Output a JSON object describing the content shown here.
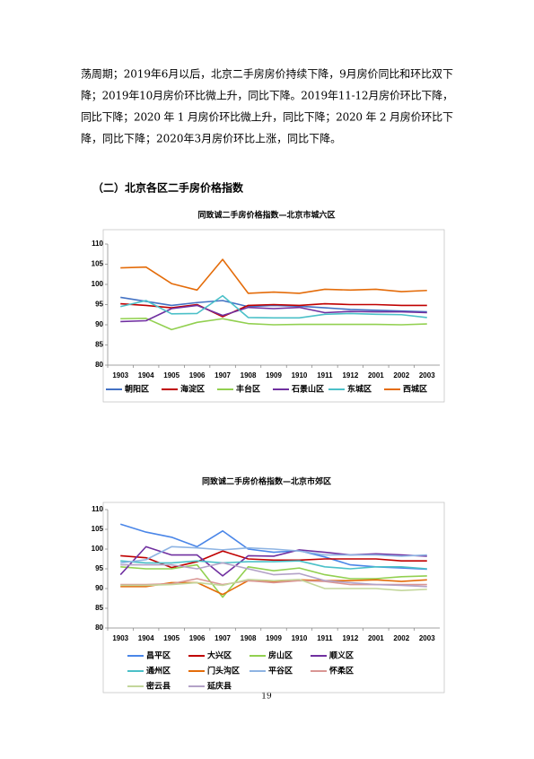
{
  "paragraph": [
    "荡周期；2019年6月以后，北京二手房房价持续下降，9月房价同比和环比双下",
    "降；2019年10月房价环比微上升，同比下降。2019年11-12月房价环比下降，",
    "同比下降；2020 年 1 月房价环比微上升，同比下降；2020 年 2 月房价环比下",
    "降，同比下降；2020年3月房价环比上涨，同比下降。"
  ],
  "section_heading": "（二）北京各区二手房价格指数",
  "chart_data": [
    {
      "type": "line",
      "title": "同致诚二手房价格指数—北京市城六区",
      "categories": [
        "1903",
        "1904",
        "1905",
        "1906",
        "1907",
        "1908",
        "1909",
        "1910",
        "1911",
        "1912",
        "2001",
        "2002",
        "2003"
      ],
      "ylim": [
        80,
        110
      ],
      "yticks": [
        80,
        85,
        90,
        95,
        100,
        105,
        110
      ],
      "legend": "bottom",
      "series": [
        {
          "name": "朝阳区",
          "color": "#4472c4",
          "values": [
            96.8,
            95.8,
            94.8,
            95.5,
            96.0,
            94.5,
            94.8,
            94.6,
            94.2,
            93.8,
            93.6,
            93.4,
            93.2
          ]
        },
        {
          "name": "海淀区",
          "color": "#c00000",
          "values": [
            95.2,
            94.8,
            94.2,
            95.0,
            92.0,
            94.8,
            95.0,
            94.8,
            95.2,
            95.0,
            95.0,
            94.8,
            94.8
          ]
        },
        {
          "name": "丰台区",
          "color": "#92d050",
          "values": [
            91.5,
            91.6,
            88.8,
            90.6,
            91.5,
            90.3,
            90.0,
            90.1,
            90.1,
            90.1,
            90.1,
            90.0,
            90.2
          ]
        },
        {
          "name": "石景山区",
          "color": "#7030a0",
          "values": [
            90.8,
            91.0,
            94.0,
            94.8,
            92.3,
            94.3,
            94.0,
            94.3,
            93.0,
            93.3,
            93.2,
            93.2,
            93.0
          ]
        },
        {
          "name": "东城区",
          "color": "#4bc0c8",
          "values": [
            94.5,
            96.0,
            92.7,
            92.8,
            97.2,
            91.8,
            91.7,
            91.7,
            92.6,
            92.8,
            92.6,
            92.5,
            91.8
          ]
        },
        {
          "name": "西城区",
          "color": "#e46c0a",
          "values": [
            104.1,
            104.3,
            100.2,
            98.6,
            106.2,
            97.8,
            98.1,
            97.8,
            98.8,
            98.6,
            98.8,
            98.2,
            98.5
          ]
        }
      ]
    },
    {
      "type": "line",
      "title": "同致诚二手房价格指数—北京市郊区",
      "categories": [
        "1903",
        "1904",
        "1905",
        "1906",
        "1907",
        "1908",
        "1909",
        "1910",
        "1911",
        "1912",
        "2001",
        "2002",
        "2003"
      ],
      "ylim": [
        80,
        110
      ],
      "yticks": [
        80,
        85,
        90,
        95,
        100,
        105,
        110
      ],
      "legend": "bottom",
      "series": [
        {
          "name": "昌平区",
          "color": "#4a86e8",
          "values": [
            106.3,
            104.3,
            103.0,
            100.6,
            104.6,
            100.0,
            99.2,
            99.6,
            98.0,
            96.0,
            95.5,
            95.2,
            94.9
          ]
        },
        {
          "name": "大兴区",
          "color": "#c00000",
          "values": [
            98.3,
            97.8,
            95.3,
            96.8,
            99.5,
            97.5,
            97.2,
            97.2,
            97.5,
            97.5,
            97.5,
            97.0,
            97.0
          ]
        },
        {
          "name": "房山区",
          "color": "#92d050",
          "values": [
            95.5,
            95.0,
            95.0,
            96.0,
            87.8,
            95.5,
            94.5,
            95.2,
            93.5,
            92.5,
            92.5,
            93.0,
            93.2
          ]
        },
        {
          "name": "顺义区",
          "color": "#7030a0",
          "values": [
            93.5,
            100.6,
            98.5,
            98.5,
            93.2,
            98.3,
            98.2,
            99.8,
            99.2,
            98.5,
            98.8,
            98.5,
            98.2
          ]
        },
        {
          "name": "通州区",
          "color": "#4bc0c8",
          "values": [
            97.0,
            96.5,
            96.5,
            97.0,
            96.5,
            96.8,
            96.8,
            97.0,
            95.5,
            95.0,
            95.5,
            95.5,
            95.0
          ]
        },
        {
          "name": "门头沟区",
          "color": "#e46c0a",
          "values": [
            90.5,
            90.5,
            91.5,
            91.5,
            88.5,
            92.0,
            91.8,
            92.2,
            92.0,
            92.0,
            92.2,
            91.8,
            92.2
          ]
        },
        {
          "name": "平谷区",
          "color": "#8eb4e3",
          "values": [
            96.5,
            97.3,
            100.6,
            100.3,
            99.8,
            100.3,
            100.0,
            99.5,
            98.5,
            98.5,
            98.5,
            98.2,
            98.5
          ]
        },
        {
          "name": "怀柔区",
          "color": "#d99694",
          "values": [
            91.0,
            91.0,
            91.2,
            92.5,
            91.0,
            92.0,
            91.5,
            92.0,
            91.8,
            91.0,
            91.0,
            91.0,
            91.0
          ]
        },
        {
          "name": "密云县",
          "color": "#c3d69b",
          "values": [
            90.8,
            90.8,
            91.0,
            91.5,
            90.8,
            92.3,
            92.0,
            92.3,
            90.0,
            90.0,
            90.0,
            89.5,
            89.8
          ]
        },
        {
          "name": "延庆县",
          "color": "#b3a2c7",
          "values": [
            96.0,
            96.0,
            96.0,
            95.0,
            96.5,
            95.0,
            93.5,
            93.8,
            92.0,
            91.5,
            91.0,
            90.8,
            90.5
          ]
        }
      ]
    }
  ],
  "page_number": "19"
}
